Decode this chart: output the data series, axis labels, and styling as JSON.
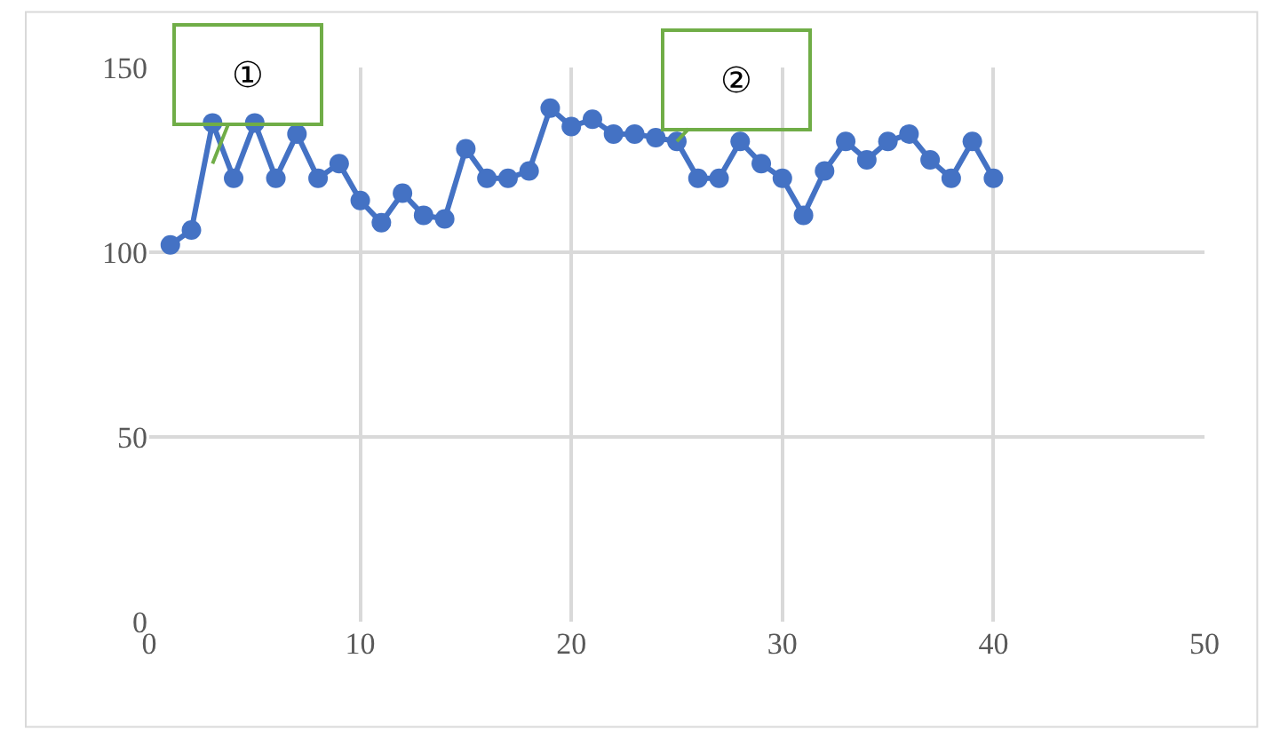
{
  "chart_data": {
    "type": "line",
    "x": [
      1,
      2,
      3,
      4,
      5,
      6,
      7,
      8,
      9,
      10,
      11,
      12,
      13,
      14,
      15,
      16,
      17,
      18,
      19,
      20,
      21,
      22,
      23,
      24,
      25,
      26,
      27,
      28,
      29,
      30,
      31,
      32,
      33,
      34,
      35,
      36,
      37,
      38,
      39,
      40
    ],
    "series": [
      {
        "color": "#4472c4",
        "values": [
          102,
          106,
          135,
          120,
          135,
          120,
          132,
          120,
          124,
          114,
          108,
          116,
          110,
          109,
          128,
          120,
          120,
          122,
          139,
          134,
          136,
          132,
          132,
          131,
          130,
          120,
          120,
          130,
          124,
          120,
          110,
          122,
          130,
          125,
          130,
          132,
          125,
          120,
          130,
          120
        ]
      }
    ],
    "xlim": [
      0,
      50
    ],
    "xticks": [
      0,
      10,
      20,
      30,
      40,
      50
    ],
    "ylim": [
      0,
      150
    ],
    "yticks": [
      0,
      50,
      100,
      150
    ],
    "grid": true,
    "legend": false,
    "marker": "circle",
    "line_style": "solid",
    "annotations": [
      {
        "text": "①",
        "x": 3,
        "y": 124
      },
      {
        "text": "②",
        "x": 25,
        "y": 130
      }
    ]
  }
}
